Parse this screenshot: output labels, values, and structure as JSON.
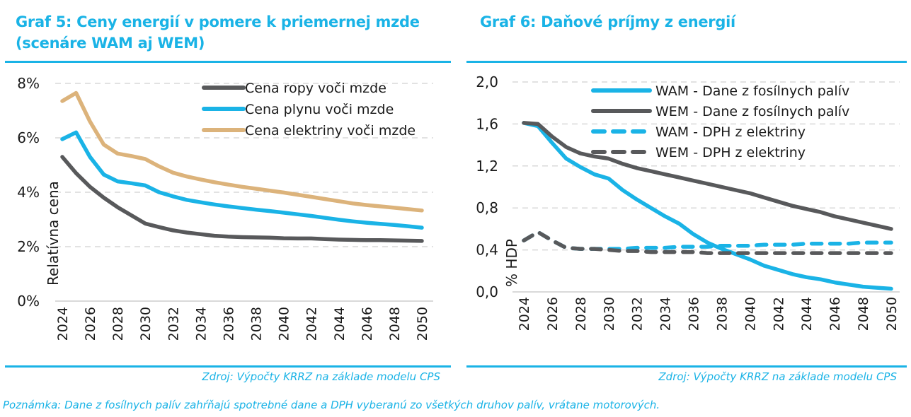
{
  "page": {
    "note": "Poznámka: Dane z fosílnych palív zahŕňajú spotrebné dane a DPH vyberanú zo všetkých druhov palív, vrátane motorových."
  },
  "colors": {
    "accent": "#1ab3e6",
    "oil": "#58595b",
    "gas": "#1ab3e6",
    "electricity": "#dcb37b",
    "grid": "#d9d9d9"
  },
  "chart_data": [
    {
      "type": "line",
      "title": "Graf 5: Ceny energií v pomere k priemernej mzde (scenáre WAM aj WEM)",
      "source": "Zdroj: Výpočty KRRZ na základe modelu CPS",
      "xlabel": "",
      "ylabel": "Relatívna cena",
      "ylim": [
        0,
        8
      ],
      "yticks": [
        "0%",
        "2%",
        "4%",
        "6%",
        "8%"
      ],
      "ytick_values": [
        0,
        2,
        4,
        6,
        8
      ],
      "grid": true,
      "legend_position": "top-right",
      "x": [
        2024,
        2025,
        2026,
        2027,
        2028,
        2029,
        2030,
        2031,
        2032,
        2033,
        2034,
        2035,
        2036,
        2037,
        2038,
        2039,
        2040,
        2041,
        2042,
        2043,
        2044,
        2045,
        2046,
        2047,
        2048,
        2049,
        2050
      ],
      "xticks": [
        "2024",
        "2026",
        "2028",
        "2030",
        "2032",
        "2034",
        "2036",
        "2038",
        "2040",
        "2042",
        "2044",
        "2046",
        "2048",
        "2050"
      ],
      "series": [
        {
          "name": "Cena ropy voči mzde",
          "color_key": "oil",
          "dashed": false,
          "values": [
            5.3,
            4.7,
            4.2,
            3.8,
            3.45,
            3.15,
            2.85,
            2.72,
            2.6,
            2.52,
            2.46,
            2.4,
            2.37,
            2.35,
            2.34,
            2.33,
            2.31,
            2.3,
            2.3,
            2.28,
            2.26,
            2.25,
            2.24,
            2.24,
            2.23,
            2.22,
            2.21
          ]
        },
        {
          "name": "Cena plynu voči mzde",
          "color_key": "gas",
          "dashed": false,
          "values": [
            5.95,
            6.2,
            5.3,
            4.65,
            4.4,
            4.33,
            4.25,
            4.0,
            3.85,
            3.72,
            3.63,
            3.55,
            3.48,
            3.42,
            3.36,
            3.31,
            3.25,
            3.19,
            3.13,
            3.06,
            2.99,
            2.93,
            2.88,
            2.84,
            2.8,
            2.75,
            2.7
          ]
        },
        {
          "name": "Cena elektriny voči mzde",
          "color_key": "electricity",
          "dashed": false,
          "values": [
            7.35,
            7.65,
            6.6,
            5.75,
            5.42,
            5.33,
            5.22,
            4.95,
            4.72,
            4.58,
            4.47,
            4.37,
            4.28,
            4.2,
            4.13,
            4.06,
            3.99,
            3.91,
            3.83,
            3.75,
            3.67,
            3.59,
            3.53,
            3.48,
            3.43,
            3.38,
            3.33
          ]
        }
      ]
    },
    {
      "type": "line",
      "title": "Graf 6: Daňové príjmy z energií",
      "source": "Zdroj: Výpočty KRRZ na základe modelu CPS",
      "xlabel": "",
      "ylabel": "% HDP",
      "ylim": [
        0,
        2.0
      ],
      "yticks": [
        "0,0",
        "0,4",
        "0,8",
        "1,2",
        "1,6",
        "2,0"
      ],
      "ytick_values": [
        0,
        0.4,
        0.8,
        1.2,
        1.6,
        2.0
      ],
      "grid": true,
      "legend_position": "top-right",
      "x": [
        2024,
        2025,
        2026,
        2027,
        2028,
        2029,
        2030,
        2031,
        2032,
        2033,
        2034,
        2035,
        2036,
        2037,
        2038,
        2039,
        2040,
        2041,
        2042,
        2043,
        2044,
        2045,
        2046,
        2047,
        2048,
        2049,
        2050
      ],
      "xticks": [
        "2024",
        "2026",
        "2028",
        "2030",
        "2032",
        "2034",
        "2036",
        "2038",
        "2040",
        "2042",
        "2044",
        "2046",
        "2048",
        "2050"
      ],
      "series": [
        {
          "name": "WAM - Dane z fosílnych palív",
          "color_key": "gas",
          "dashed": false,
          "values": [
            1.61,
            1.58,
            1.42,
            1.27,
            1.19,
            1.12,
            1.08,
            0.97,
            0.88,
            0.8,
            0.72,
            0.65,
            0.55,
            0.47,
            0.41,
            0.36,
            0.31,
            0.25,
            0.21,
            0.17,
            0.14,
            0.12,
            0.09,
            0.07,
            0.05,
            0.04,
            0.03
          ]
        },
        {
          "name": "WEM - Dane z fosílnych palív",
          "color_key": "oil",
          "dashed": false,
          "values": [
            1.61,
            1.6,
            1.48,
            1.38,
            1.32,
            1.29,
            1.27,
            1.22,
            1.18,
            1.15,
            1.12,
            1.09,
            1.06,
            1.03,
            1.0,
            0.97,
            0.94,
            0.9,
            0.86,
            0.82,
            0.79,
            0.76,
            0.72,
            0.69,
            0.66,
            0.63,
            0.6
          ]
        },
        {
          "name": "WAM - DPH z elektriny",
          "color_key": "gas",
          "dashed": true,
          "values": [
            0.49,
            0.57,
            0.49,
            0.42,
            0.41,
            0.41,
            0.41,
            0.41,
            0.42,
            0.42,
            0.42,
            0.43,
            0.43,
            0.43,
            0.44,
            0.44,
            0.44,
            0.45,
            0.45,
            0.45,
            0.46,
            0.46,
            0.46,
            0.46,
            0.47,
            0.47,
            0.47
          ]
        },
        {
          "name": "WEM - DPH z elektriny",
          "color_key": "oil",
          "dashed": true,
          "values": [
            0.49,
            0.57,
            0.49,
            0.42,
            0.41,
            0.41,
            0.4,
            0.39,
            0.39,
            0.38,
            0.38,
            0.38,
            0.38,
            0.37,
            0.37,
            0.37,
            0.37,
            0.37,
            0.37,
            0.37,
            0.37,
            0.37,
            0.37,
            0.37,
            0.37,
            0.37,
            0.37
          ]
        }
      ]
    }
  ]
}
